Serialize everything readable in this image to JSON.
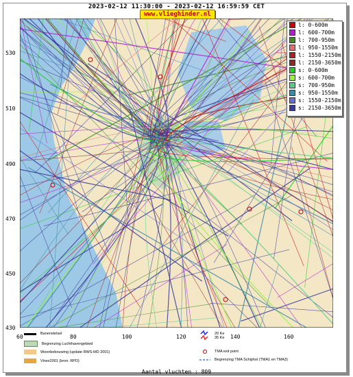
{
  "header": {
    "title": "2023-02-12 11:30:00 - 2023-02-12 16:59:59 CET",
    "site": "www.vlieghinder.nl"
  },
  "axes": {
    "y_ticks": [
      "530",
      "510",
      "490",
      "470",
      "450",
      "430"
    ],
    "x_ticks": [
      "60",
      "80",
      "100",
      "120",
      "140",
      "160"
    ]
  },
  "legend": [
    {
      "label": "l: 0-600m",
      "color": "#d40000"
    },
    {
      "label": "l: 600-700m",
      "color": "#b020d0"
    },
    {
      "label": "l: 700-950m",
      "color": "#3d8c1e"
    },
    {
      "label": "l: 950-1550m",
      "color": "#e07070"
    },
    {
      "label": "l: 1550-2150m",
      "color": "#b02020"
    },
    {
      "label": "l: 2150-3650m",
      "color": "#8a2a2a"
    },
    {
      "label": "s: 0-600m",
      "color": "#22cc22"
    },
    {
      "label": "s: 600-700m",
      "color": "#99ee44"
    },
    {
      "label": "s: 700-950m",
      "color": "#55cc88"
    },
    {
      "label": "s: 950-1550m",
      "color": "#3a8aa8"
    },
    {
      "label": "s: 1550-2150m",
      "color": "#6a6ad0"
    },
    {
      "label": "s: 2150-3650m",
      "color": "#3a3a9a"
    }
  ],
  "map_legend": [
    {
      "label": "Banenstelsel"
    },
    {
      "label": "Begrenzing Luchthavengebied"
    },
    {
      "label": "Woonbebouwing (update RWS-MD 2001)"
    },
    {
      "label": "Vinex2001 (bron: RPD)"
    },
    {
      "label": "20 Ke"
    },
    {
      "label": "35 Ke"
    },
    {
      "label": "TMA exit point"
    },
    {
      "label": "Begrenzing TMA Schiphol  (TMA1 en TMA3)"
    }
  ],
  "footer": {
    "count_text": "Aantal vluchten : 809"
  }
}
